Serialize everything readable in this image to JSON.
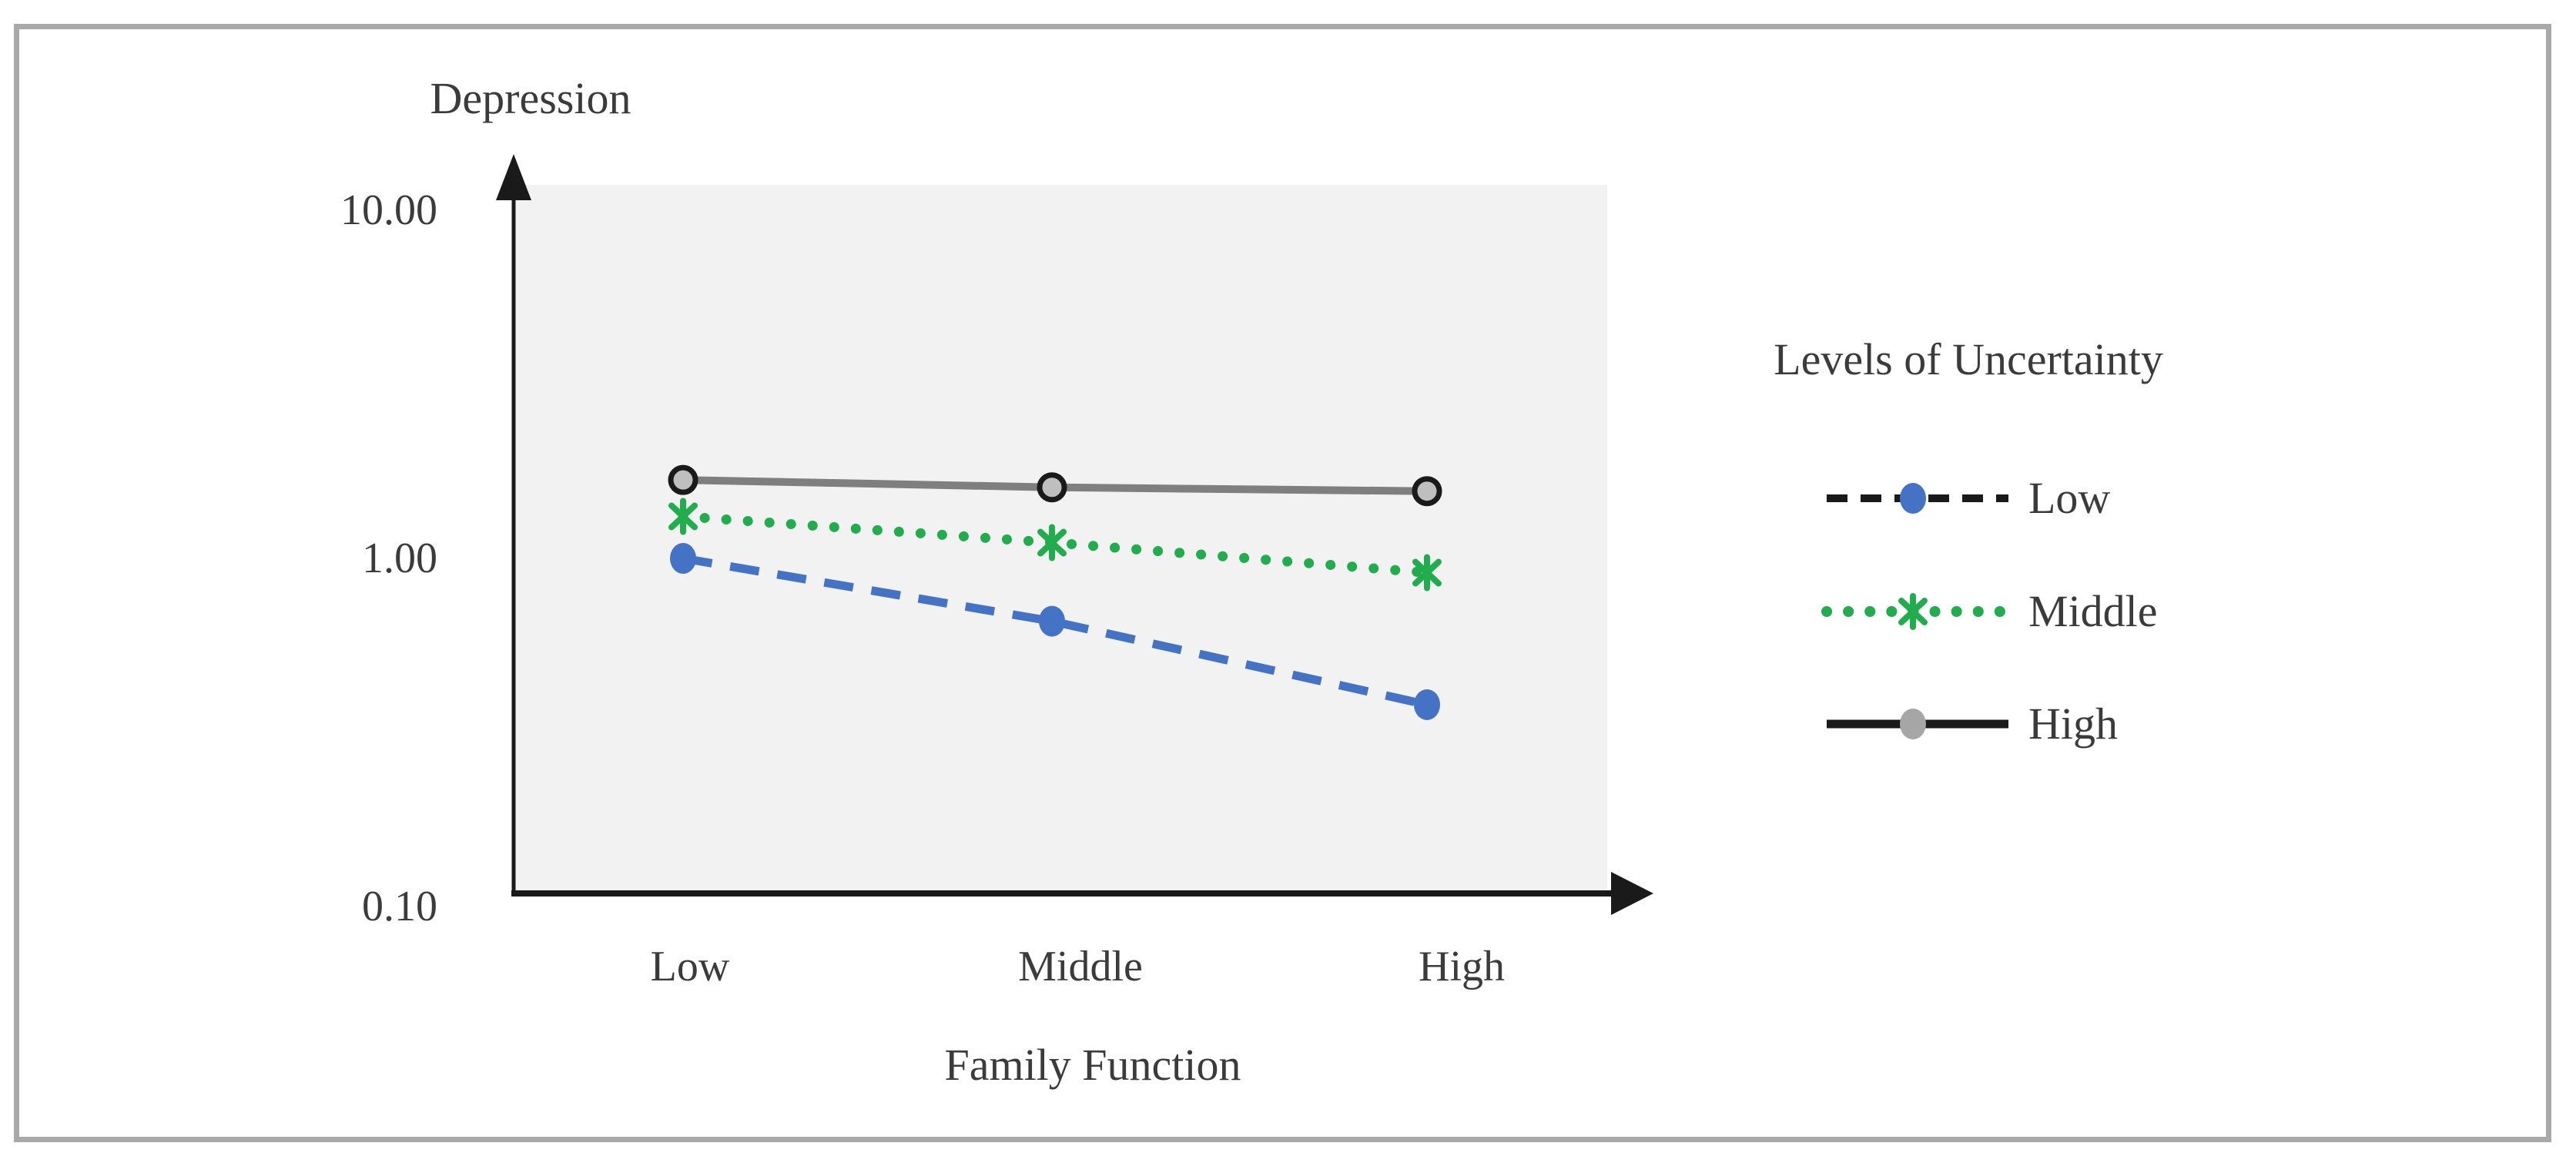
{
  "figure": {
    "y_axis_title": "Depression",
    "x_axis_title": "Family Function",
    "legend_title": "Levels of Uncertainty",
    "y_ticks": [
      "10.00",
      "1.00",
      "0.10"
    ],
    "x_categories": [
      "Low",
      "Middle",
      "High"
    ],
    "legend": {
      "items": [
        {
          "label": "Low",
          "line_style": "dashed",
          "line_color": "#1a1a1a",
          "marker": "circle",
          "marker_color": "#4472c4"
        },
        {
          "label": "Middle",
          "line_style": "dotted",
          "line_color": "#21ac4e",
          "marker": "star",
          "marker_color": "#21ac4e"
        },
        {
          "label": "High",
          "line_style": "solid",
          "line_color": "#1a1a1a",
          "marker": "circle",
          "marker_color": "#a6a6a6"
        }
      ]
    },
    "colors": {
      "plot_background": "#f2f2f2",
      "frame_border": "#a9a9a9",
      "axis": "#1a1a1a",
      "text": "#3b3b3b",
      "series_low": "#4472c4",
      "series_middle": "#21ac4e",
      "series_high": "#7f7f7f",
      "high_marker_fill": "#bfbfbf"
    }
  },
  "chart_data": {
    "type": "line",
    "categories": [
      "Low",
      "Middle",
      "High"
    ],
    "series": [
      {
        "name": "Low",
        "values": [
          1.0,
          0.66,
          0.38
        ],
        "color": "#4472c4",
        "style": "dashed",
        "marker": "circle"
      },
      {
        "name": "Middle",
        "values": [
          1.32,
          1.11,
          0.91
        ],
        "color": "#21ac4e",
        "style": "dotted",
        "marker": "star"
      },
      {
        "name": "High",
        "values": [
          1.68,
          1.6,
          1.56
        ],
        "color": "#7f7f7f",
        "style": "solid",
        "marker": "circle-outlined"
      }
    ],
    "xlabel": "Family Function",
    "ylabel": "Depression",
    "y_scale": "log",
    "ylim": [
      0.1,
      10.0
    ],
    "y_tick_values": [
      10.0,
      1.0,
      0.1
    ],
    "legend_title": "Levels of Uncertainty",
    "legend_position": "right",
    "grid": false
  }
}
